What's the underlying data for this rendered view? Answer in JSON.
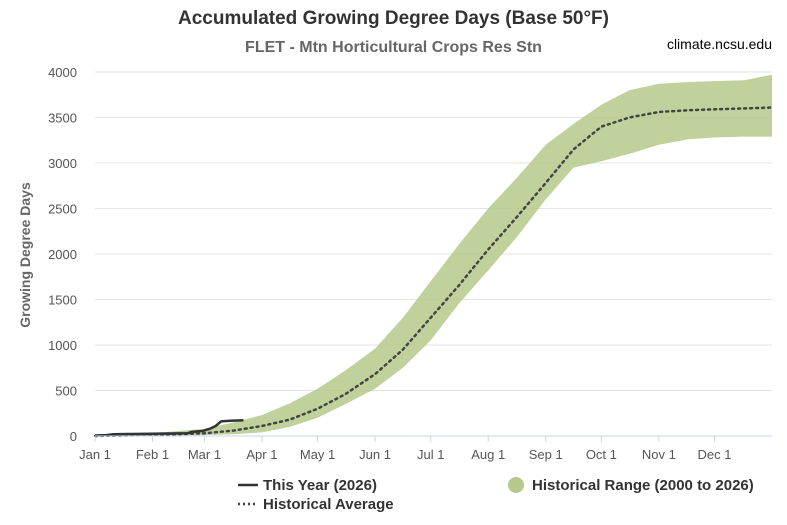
{
  "chart_data": {
    "type": "line",
    "title": "Accumulated Growing Degree Days (Base 50°F)",
    "subtitle": "FLET - Mtn Horticultural Crops Res Stn",
    "credit": "climate.ncsu.edu",
    "xlabel": "",
    "ylabel": "Growing Degree Days",
    "ylim": [
      0,
      4000
    ],
    "xlim": [
      0,
      365
    ],
    "yticks": [
      0,
      500,
      1000,
      1500,
      2000,
      2500,
      3000,
      3500,
      4000
    ],
    "xticks": [
      {
        "label": "Jan 1",
        "day": 0
      },
      {
        "label": "Feb 1",
        "day": 31
      },
      {
        "label": "Mar 1",
        "day": 59
      },
      {
        "label": "Apr 1",
        "day": 90
      },
      {
        "label": "May 1",
        "day": 120
      },
      {
        "label": "Jun 1",
        "day": 151
      },
      {
        "label": "Jul 1",
        "day": 181
      },
      {
        "label": "Aug 1",
        "day": 212
      },
      {
        "label": "Sep 1",
        "day": 243
      },
      {
        "label": "Oct 1",
        "day": 273
      },
      {
        "label": "Nov 1",
        "day": 304
      },
      {
        "label": "Dec 1",
        "day": 334
      }
    ],
    "grid": true,
    "series": [
      {
        "name": "This Year (2026)",
        "style": "solid",
        "color": "#333333",
        "points": [
          [
            0,
            5
          ],
          [
            6,
            10
          ],
          [
            10,
            20
          ],
          [
            20,
            22
          ],
          [
            30,
            25
          ],
          [
            40,
            28
          ],
          [
            50,
            30
          ],
          [
            52,
            45
          ],
          [
            58,
            55
          ],
          [
            62,
            80
          ],
          [
            65,
            110
          ],
          [
            68,
            160
          ],
          [
            73,
            168
          ],
          [
            80,
            172
          ]
        ]
      },
      {
        "name": "Historical Average",
        "style": "dotted",
        "color": "#444444",
        "points": [
          [
            0,
            0
          ],
          [
            30,
            10
          ],
          [
            59,
            30
          ],
          [
            75,
            60
          ],
          [
            90,
            110
          ],
          [
            105,
            180
          ],
          [
            120,
            300
          ],
          [
            135,
            460
          ],
          [
            151,
            680
          ],
          [
            166,
            950
          ],
          [
            181,
            1300
          ],
          [
            196,
            1650
          ],
          [
            212,
            2050
          ],
          [
            228,
            2420
          ],
          [
            243,
            2780
          ],
          [
            258,
            3150
          ],
          [
            273,
            3400
          ],
          [
            288,
            3500
          ],
          [
            304,
            3560
          ],
          [
            320,
            3580
          ],
          [
            334,
            3590
          ],
          [
            350,
            3600
          ],
          [
            365,
            3610
          ]
        ]
      }
    ],
    "range": {
      "name": "Historical Range (2000 to 2026)",
      "color": "#b5c98a",
      "upper": [
        [
          0,
          10
        ],
        [
          30,
          30
        ],
        [
          59,
          80
        ],
        [
          75,
          150
        ],
        [
          90,
          230
        ],
        [
          105,
          360
        ],
        [
          120,
          520
        ],
        [
          135,
          720
        ],
        [
          151,
          960
        ],
        [
          166,
          1300
        ],
        [
          181,
          1700
        ],
        [
          196,
          2100
        ],
        [
          212,
          2500
        ],
        [
          228,
          2850
        ],
        [
          243,
          3200
        ],
        [
          258,
          3430
        ],
        [
          273,
          3640
        ],
        [
          288,
          3800
        ],
        [
          304,
          3870
        ],
        [
          320,
          3890
        ],
        [
          334,
          3900
        ],
        [
          350,
          3910
        ],
        [
          365,
          3970
        ]
      ],
      "lower": [
        [
          0,
          0
        ],
        [
          30,
          5
        ],
        [
          59,
          10
        ],
        [
          75,
          20
        ],
        [
          90,
          40
        ],
        [
          105,
          100
        ],
        [
          120,
          200
        ],
        [
          135,
          350
        ],
        [
          151,
          520
        ],
        [
          166,
          750
        ],
        [
          181,
          1050
        ],
        [
          196,
          1450
        ],
        [
          212,
          1820
        ],
        [
          228,
          2200
        ],
        [
          243,
          2600
        ],
        [
          258,
          2950
        ],
        [
          273,
          3020
        ],
        [
          288,
          3100
        ],
        [
          304,
          3200
        ],
        [
          320,
          3260
        ],
        [
          334,
          3280
        ],
        [
          350,
          3290
        ],
        [
          365,
          3290
        ]
      ]
    },
    "legend_placement": "bottom"
  }
}
